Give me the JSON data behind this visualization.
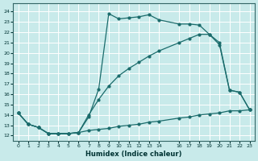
{
  "xlabel": "Humidex (Indice chaleur)",
  "bg_color": "#c8eaea",
  "grid_color": "#ffffff",
  "line_color": "#1a6b6b",
  "xlim": [
    -0.5,
    23.5
  ],
  "ylim": [
    11.5,
    24.8
  ],
  "yticks": [
    12,
    13,
    14,
    15,
    16,
    17,
    18,
    19,
    20,
    21,
    22,
    23,
    24
  ],
  "xticks": [
    0,
    1,
    2,
    3,
    4,
    5,
    6,
    7,
    8,
    9,
    10,
    11,
    12,
    13,
    14,
    16,
    17,
    18,
    19,
    20,
    21,
    22,
    23
  ],
  "xtick_labels": [
    "0",
    "1",
    "2",
    "3",
    "4",
    "5",
    "6",
    "7",
    "8",
    "9",
    "10",
    "11",
    "12",
    "13",
    "14",
    "16",
    "17",
    "18",
    "19",
    "20",
    "21",
    "22",
    "23"
  ],
  "line1_x": [
    0,
    1,
    2,
    3,
    4,
    5,
    6,
    7,
    8,
    9,
    10,
    11,
    12,
    13,
    14,
    16,
    17,
    18,
    19,
    20,
    21,
    22,
    23
  ],
  "line1_y": [
    14.2,
    13.1,
    12.8,
    12.2,
    12.2,
    12.2,
    12.3,
    13.8,
    16.5,
    23.8,
    23.3,
    23.4,
    23.5,
    23.7,
    23.2,
    22.8,
    22.8,
    22.7,
    21.8,
    20.8,
    16.4,
    16.2,
    14.5
  ],
  "line2_x": [
    0,
    1,
    2,
    3,
    4,
    5,
    6,
    7,
    8,
    9,
    10,
    11,
    12,
    13,
    14,
    16,
    17,
    18,
    19,
    20,
    21,
    22,
    23
  ],
  "line2_y": [
    14.2,
    13.1,
    12.8,
    12.2,
    12.2,
    12.2,
    12.3,
    14.0,
    15.5,
    16.8,
    17.8,
    18.5,
    19.1,
    19.7,
    20.2,
    21.0,
    21.4,
    21.8,
    21.8,
    21.0,
    16.4,
    16.2,
    14.5
  ],
  "line3_x": [
    0,
    1,
    2,
    3,
    4,
    5,
    6,
    7,
    8,
    9,
    10,
    11,
    12,
    13,
    14,
    16,
    17,
    18,
    19,
    20,
    21,
    22,
    23
  ],
  "line3_y": [
    14.2,
    13.1,
    12.8,
    12.2,
    12.2,
    12.2,
    12.3,
    12.5,
    12.6,
    12.7,
    12.9,
    13.0,
    13.1,
    13.3,
    13.4,
    13.7,
    13.8,
    14.0,
    14.1,
    14.2,
    14.4,
    14.4,
    14.5
  ]
}
